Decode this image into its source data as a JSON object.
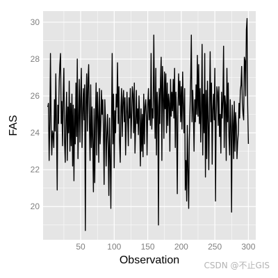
{
  "chart_data": {
    "type": "line",
    "title": "",
    "xlabel": "Observation",
    "ylabel": "FAS",
    "xlim": [
      -6,
      311
    ],
    "ylim": [
      18.2,
      30.6
    ],
    "x_ticks": [
      50,
      100,
      150,
      200,
      250,
      300
    ],
    "y_ticks": [
      20,
      22,
      24,
      26,
      28,
      30
    ],
    "grid": true,
    "legend": "none",
    "colors": {
      "panel": "#e5e5e5",
      "grid": "#ffffff",
      "line": "#000000",
      "tick_text": "#7f7f7f"
    },
    "series": [
      {
        "x": [
          1,
          2,
          3,
          4,
          5,
          6,
          7,
          8,
          9,
          10,
          11,
          12,
          13,
          14,
          15,
          16,
          17,
          18,
          19,
          20,
          21,
          22,
          23,
          24,
          25,
          26,
          27,
          28,
          29,
          30,
          31,
          32,
          33,
          34,
          35,
          36,
          37,
          38,
          39,
          40,
          41,
          42,
          43,
          44,
          45,
          46,
          47,
          48,
          49,
          50,
          51,
          52,
          53,
          54,
          55,
          56,
          57,
          58,
          59,
          60,
          61,
          62,
          63,
          64,
          65,
          66,
          67,
          68,
          69,
          70,
          71,
          72,
          73,
          74,
          75,
          76,
          77,
          78,
          79,
          80,
          81,
          82,
          83,
          84,
          85,
          86,
          87,
          88,
          89,
          90,
          91,
          92,
          93,
          94,
          95,
          96,
          97,
          98,
          99,
          100,
          101,
          102,
          103,
          104,
          105,
          106,
          107,
          108,
          109,
          110,
          111,
          112,
          113,
          114,
          115,
          116,
          117,
          118,
          119,
          120,
          121,
          122,
          123,
          124,
          125,
          126,
          127,
          128,
          129,
          130,
          131,
          132,
          133,
          134,
          135,
          136,
          137,
          138,
          139,
          140,
          141,
          142,
          143,
          144,
          145,
          146,
          147,
          148,
          149,
          150,
          151,
          152,
          153,
          154,
          155,
          156,
          157,
          158,
          159,
          160,
          161,
          162,
          163,
          164,
          165,
          166,
          167,
          168,
          169,
          170,
          171,
          172,
          173,
          174,
          175,
          176,
          177,
          178,
          179,
          180,
          181,
          182,
          183,
          184,
          185,
          186,
          187,
          188,
          189,
          190,
          191,
          192,
          193,
          194,
          195,
          196,
          197,
          198,
          199,
          200,
          201,
          202,
          203,
          204,
          205,
          206,
          207,
          208,
          209,
          210,
          211,
          212,
          213,
          214,
          215,
          216,
          217,
          218,
          219,
          220,
          221,
          222,
          223,
          224,
          225,
          226,
          227,
          228,
          229,
          230,
          231,
          232,
          233,
          234,
          235,
          236,
          237,
          238,
          239,
          240,
          241,
          242,
          243,
          244,
          245,
          246,
          247,
          248,
          249,
          250,
          251,
          252,
          253,
          254,
          255,
          256,
          257,
          258,
          259,
          260,
          261,
          262,
          263,
          264,
          265,
          266,
          267,
          268,
          269,
          270,
          271,
          272,
          273,
          274,
          275,
          276,
          277,
          278,
          279,
          280,
          281,
          282,
          283,
          284,
          285,
          286,
          287,
          288,
          289,
          290,
          291,
          292,
          293,
          294,
          295,
          296,
          297,
          298,
          299,
          300
        ],
        "y": [
          25.4,
          25.6,
          22.5,
          24.6,
          28.3,
          24.2,
          22.8,
          24.1,
          23.9,
          23.2,
          25.8,
          24.1,
          27.2,
          24.3,
          20.9,
          25.5,
          24.5,
          26.8,
          27.7,
          28.3,
          24.5,
          25.7,
          23.3,
          26.1,
          27.5,
          23.5,
          22.4,
          24.7,
          26.2,
          22.5,
          25.4,
          24.0,
          26.8,
          23.0,
          25.6,
          23.3,
          26.1,
          22.2,
          25.5,
          21.4,
          25.3,
          23.4,
          26.7,
          23.8,
          28.0,
          22.6,
          24.8,
          26.9,
          23.5,
          25.9,
          27.5,
          23.2,
          25.1,
          26.4,
          24.7,
          26.6,
          18.7,
          25.7,
          27.2,
          24.1,
          26.9,
          27.7,
          24.5,
          22.5,
          26.6,
          23.2,
          25.4,
          23.6,
          20.8,
          25.3,
          21.3,
          24.7,
          26.7,
          22.8,
          26.2,
          24.9,
          22.4,
          26.4,
          23.4,
          24.4,
          26.3,
          25.0,
          25.8,
          24.0,
          21.2,
          25.8,
          24.7,
          22.2,
          23.8,
          25.0,
          23.4,
          20.6,
          24.8,
          22.8,
          19.9,
          24.6,
          28.3,
          23.4,
          26.1,
          22.1,
          25.2,
          24.0,
          26.1,
          25.4,
          27.8,
          24.5,
          26.5,
          23.6,
          22.4,
          25.4,
          26.4,
          23.8,
          25.8,
          26.3,
          24.6,
          25.9,
          22.8,
          24.6,
          26.2,
          24.9,
          23.3,
          25.9,
          24.8,
          26.4,
          23.7,
          24.8,
          26.5,
          26.1,
          24.0,
          26.7,
          22.9,
          24.4,
          26.3,
          24.5,
          25.3,
          23.9,
          26.0,
          24.6,
          22.2,
          25.3,
          23.0,
          25.0,
          22.7,
          26.1,
          23.4,
          25.4,
          25.8,
          24.9,
          22.8,
          25.5,
          26.4,
          24.7,
          25.8,
          24.4,
          28.3,
          24.2,
          25.3,
          24.8,
          29.3,
          26.0,
          23.7,
          27.5,
          22.8,
          26.2,
          25.4,
          19.0,
          26.4,
          24.5,
          26.8,
          28.1,
          22.5,
          27.6,
          26.0,
          23.7,
          27.3,
          25.3,
          27.2,
          24.0,
          26.7,
          24.4,
          26.1,
          25.6,
          23.0,
          26.9,
          24.9,
          26.2,
          25.2,
          26.9,
          24.8,
          27.5,
          23.2,
          26.2,
          24.7,
          20.7,
          25.4,
          27.2,
          25.5,
          26.8,
          24.6,
          26.5,
          24.2,
          27.3,
          25.6,
          24.0,
          26.4,
          20.9,
          22.5,
          20.3,
          24.4,
          22.0,
          19.9,
          23.6,
          25.2,
          27.0,
          29.3,
          24.6,
          26.3,
          25.2,
          23.0,
          25.8,
          24.6,
          26.6,
          25.0,
          28.2,
          24.9,
          27.7,
          24.5,
          26.4,
          23.5,
          25.2,
          28.8,
          22.8,
          26.1,
          24.0,
          28.3,
          21.6,
          26.3,
          22.6,
          26.8,
          24.7,
          22.0,
          25.4,
          28.4,
          24.6,
          26.7,
          22.3,
          25.2,
          26.1,
          24.7,
          27.5,
          20.3,
          24.8,
          26.5,
          26.2,
          24.4,
          26.5,
          23.8,
          25.0,
          22.9,
          26.2,
          24.8,
          25.7,
          28.7,
          23.2,
          26.0,
          25.5,
          22.5,
          27.5,
          24.6,
          26.7,
          23.8,
          22.8,
          25.8,
          24.3,
          19.7,
          25.5,
          24.5,
          22.6,
          25.7,
          23.0,
          25.1,
          24.4,
          22.6,
          23.5,
          24.0,
          25.6,
          24.8,
          26.3,
          26.6,
          27.6,
          25.6,
          25.0,
          24.7,
          28.1,
          27.9,
          26.0,
          29.6,
          30.2,
          25.5,
          23.4
        ]
      }
    ]
  },
  "watermark": "CSDN @不止GIS"
}
